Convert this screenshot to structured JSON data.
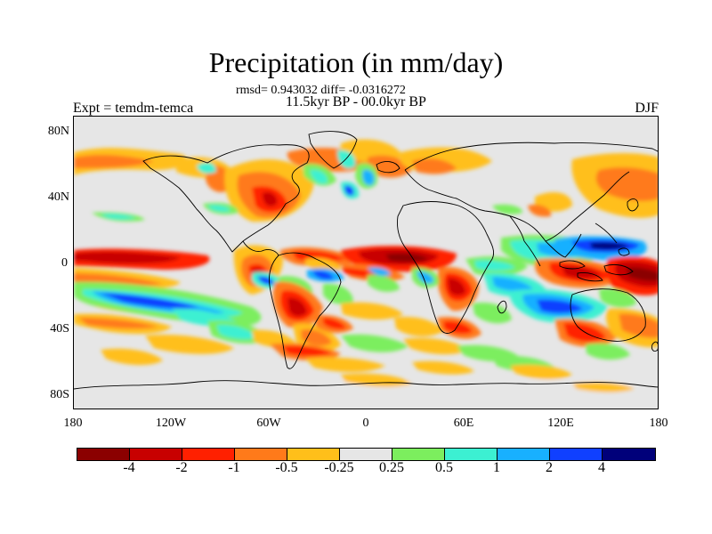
{
  "title": "Precipitation (in mm/day)",
  "subtitle_stats": "rmsd= 0.943032 diff= -0.0316272",
  "subtitle_period": "11.5kyr BP - 00.0kyr BP",
  "left_label": "Expt = temdm-temca",
  "right_label": "DJF",
  "lat_labels": [
    "80N",
    "40N",
    "0",
    "40S",
    "80S"
  ],
  "lon_labels": [
    "180",
    "120W",
    "60W",
    "0",
    "60E",
    "120E",
    "180"
  ],
  "colorbar": {
    "colors": [
      "#8b0000",
      "#c80000",
      "#ff2000",
      "#ff7a1a",
      "#ffbf1a",
      "#e6e6e6",
      "#7cee5e",
      "#3cf0d2",
      "#18b0ff",
      "#1040ff",
      "#00007a"
    ],
    "labels": [
      "-4",
      "-2",
      "-1",
      "-0.5",
      "-0.25",
      "0.25",
      "0.5",
      "1",
      "2",
      "4"
    ]
  }
}
